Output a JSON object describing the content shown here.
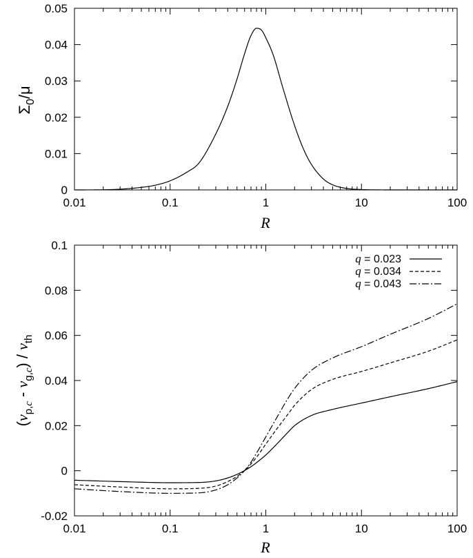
{
  "chart_data": [
    {
      "type": "line",
      "title": "",
      "xscale": "log",
      "xlim": [
        0.01,
        100
      ],
      "ylim": [
        0,
        0.05
      ],
      "xlabel": "R",
      "ylabel_main": "Σ",
      "ylabel_sub": "0",
      "ylabel_tail": "/μ",
      "xticks": [
        "0.01",
        "0.1",
        "1",
        "10",
        "100"
      ],
      "yticks": [
        "0",
        "0.01",
        "0.02",
        "0.03",
        "0.04",
        "0.05"
      ],
      "ytick_values": [
        0,
        0.01,
        0.02,
        0.03,
        0.04,
        0.05
      ],
      "legend": "none",
      "series": [
        {
          "name": "Σ0/μ",
          "style": "solid",
          "x": [
            0.01,
            0.02,
            0.03,
            0.05,
            0.07,
            0.1,
            0.15,
            0.2,
            0.3,
            0.4,
            0.5,
            0.6,
            0.7,
            0.8,
            0.9,
            1.0,
            1.2,
            1.5,
            2.0,
            2.5,
            3.0,
            4.0,
            5.0,
            7.0,
            10,
            15,
            20,
            30,
            50,
            100
          ],
          "y": [
            0.0,
            4e-05,
            0.0002,
            0.0007,
            0.0013,
            0.0025,
            0.0049,
            0.0074,
            0.0154,
            0.023,
            0.0305,
            0.0375,
            0.0425,
            0.0445,
            0.044,
            0.0419,
            0.037,
            0.0283,
            0.0177,
            0.011,
            0.007,
            0.003,
            0.0014,
            0.0004,
            0.0001,
            2e-05,
            0.0,
            0.0,
            0.0,
            0.0
          ]
        }
      ]
    },
    {
      "type": "line",
      "title": "",
      "xscale": "log",
      "xlim": [
        0.01,
        100
      ],
      "ylim": [
        -0.02,
        0.1
      ],
      "xlabel": "R",
      "ylabel": "(v_{p,c} - v_{g,c}) / v_th",
      "xticks": [
        "0.01",
        "0.1",
        "1",
        "10",
        "100"
      ],
      "yticks": [
        "-0.02",
        "0",
        "0.02",
        "0.04",
        "0.06",
        "0.08",
        "0.1"
      ],
      "ytick_values": [
        -0.02,
        0,
        0.02,
        0.04,
        0.06,
        0.08,
        0.1
      ],
      "legend": "top-right",
      "series": [
        {
          "name": "q = 0.023",
          "q_label": "q",
          "value_label": " = 0.023",
          "style": "solid",
          "x": [
            0.01,
            0.03,
            0.1,
            0.2,
            0.3,
            0.4,
            0.5,
            0.6,
            0.7,
            0.8,
            1.0,
            1.3,
            1.7,
            2.0,
            3.0,
            5.0,
            10,
            20,
            50,
            100
          ],
          "y": [
            -0.0042,
            -0.0048,
            -0.0053,
            -0.0052,
            -0.0045,
            -0.0032,
            -0.0016,
            0.0001,
            0.0018,
            0.0036,
            0.007,
            0.0118,
            0.017,
            0.02,
            0.0245,
            0.0272,
            0.03,
            0.0328,
            0.0364,
            0.0395
          ]
        },
        {
          "name": "q = 0.034",
          "q_label": "q",
          "value_label": " = 0.034",
          "style": "dashed",
          "x": [
            0.01,
            0.03,
            0.1,
            0.2,
            0.3,
            0.4,
            0.5,
            0.6,
            0.7,
            0.8,
            1.0,
            1.3,
            1.7,
            2.0,
            3.0,
            5.0,
            10,
            20,
            50,
            100
          ],
          "y": [
            -0.0062,
            -0.0072,
            -0.008,
            -0.0078,
            -0.0068,
            -0.0048,
            -0.0025,
            0.0001,
            0.003,
            0.006,
            0.0118,
            0.0185,
            0.025,
            0.029,
            0.036,
            0.0405,
            0.044,
            0.0478,
            0.053,
            0.058
          ]
        },
        {
          "name": "q = 0.043",
          "q_label": "q",
          "value_label": " = 0.043",
          "style": "dashdot",
          "x": [
            0.01,
            0.03,
            0.1,
            0.2,
            0.3,
            0.4,
            0.5,
            0.6,
            0.7,
            0.8,
            1.0,
            1.3,
            1.7,
            2.0,
            3.0,
            5.0,
            10,
            20,
            50,
            100
          ],
          "y": [
            -0.008,
            -0.0092,
            -0.01,
            -0.0098,
            -0.0085,
            -0.0062,
            -0.0032,
            0.0001,
            0.0038,
            0.0078,
            0.015,
            0.0235,
            0.032,
            0.0365,
            0.0445,
            0.05,
            0.055,
            0.0605,
            0.0675,
            0.074
          ]
        }
      ]
    }
  ]
}
